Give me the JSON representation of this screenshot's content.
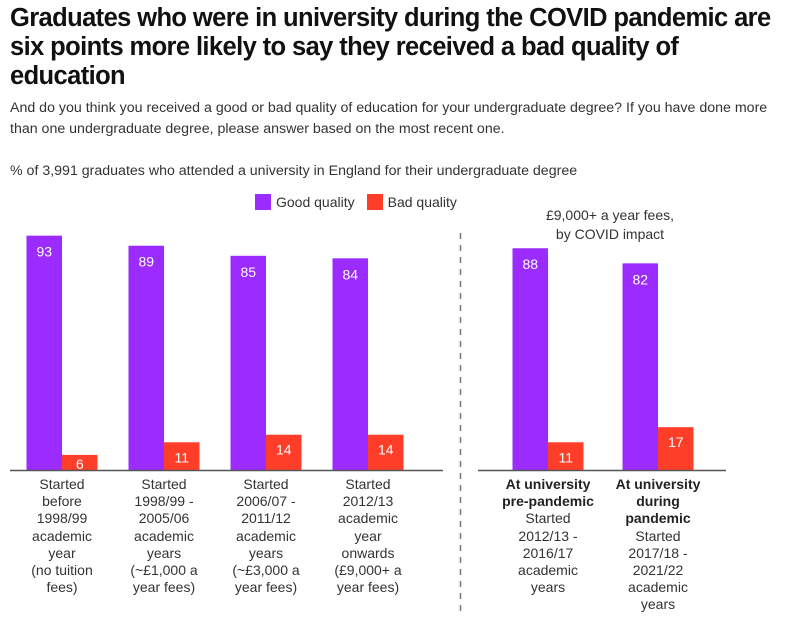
{
  "header": {
    "title": "Graduates who were in university during the COVID pandemic are six points more likely to say they received a bad quality of education",
    "subtitle": "And do you think you received a good or bad quality of education for your undergraduate degree? If you have done more than one undergraduate degree, please answer based on the most recent one.",
    "note": "% of 3,991 graduates who attended a university in England for their undergraduate degree"
  },
  "colors": {
    "good": "#9B2BFF",
    "bad": "#FF3E2A",
    "axis": "#555555",
    "divider": "#777777",
    "label_on_bar": "#ffffff"
  },
  "legend": {
    "good_label": "Good quality",
    "bad_label": "Bad quality",
    "placement": "top-center"
  },
  "chart_data": [
    {
      "type": "bar",
      "title": "",
      "xlabel": "",
      "ylabel": "%",
      "ylim": [
        0,
        100
      ],
      "grid": false,
      "categories": [
        {
          "bold": "",
          "text": "Started before 1998/99 academic year (no tuition fees)"
        },
        {
          "bold": "",
          "text": "Started 1998/99 - 2005/06 academic years (~£1,000 a year fees)"
        },
        {
          "bold": "",
          "text": "Started 2006/07 - 2011/12 academic years (~£3,000 a year fees)"
        },
        {
          "bold": "",
          "text": "Started 2012/13 academic year onwards (£9,000+ a year fees)"
        }
      ],
      "category_lines": [
        [
          "Started",
          "before",
          "1998/99",
          "academic",
          "year",
          "(no tuition",
          "fees)"
        ],
        [
          "Started",
          "1998/99 -",
          "2005/06",
          "academic",
          "years",
          "(~£1,000 a",
          "year fees)"
        ],
        [
          "Started",
          "2006/07 -",
          "2011/12",
          "academic",
          "years",
          "(~£3,000 a",
          "year fees)"
        ],
        [
          "Started",
          "2012/13",
          "academic",
          "year",
          "onwards",
          "(£9,000+ a",
          "year fees)"
        ]
      ],
      "series": [
        {
          "name": "Good quality",
          "values": [
            93,
            89,
            85,
            84
          ]
        },
        {
          "name": "Bad quality",
          "values": [
            6,
            11,
            14,
            14
          ]
        }
      ]
    },
    {
      "type": "bar",
      "title": "£9,000+ a year fees, by COVID impact",
      "title_lines": [
        "£9,000+ a year fees,",
        "by COVID impact"
      ],
      "xlabel": "",
      "ylabel": "%",
      "ylim": [
        0,
        100
      ],
      "grid": false,
      "categories": [
        {
          "bold": "At university pre-pandemic",
          "text": "Started 2012/13 - 2016/17 academic years"
        },
        {
          "bold": "At university during pandemic",
          "text": "Started 2017/18 - 2021/22 academic years"
        }
      ],
      "category_bold_lines": [
        [
          "At university",
          "pre-pandemic"
        ],
        [
          "At university",
          "during",
          "pandemic"
        ]
      ],
      "category_lines": [
        [
          "Started",
          "2012/13 -",
          "2016/17",
          "academic",
          "years"
        ],
        [
          "Started",
          "2017/18 -",
          "2021/22",
          "academic",
          "years"
        ]
      ],
      "series": [
        {
          "name": "Good quality",
          "values": [
            88,
            82
          ]
        },
        {
          "name": "Bad quality",
          "values": [
            11,
            17
          ]
        }
      ]
    }
  ]
}
